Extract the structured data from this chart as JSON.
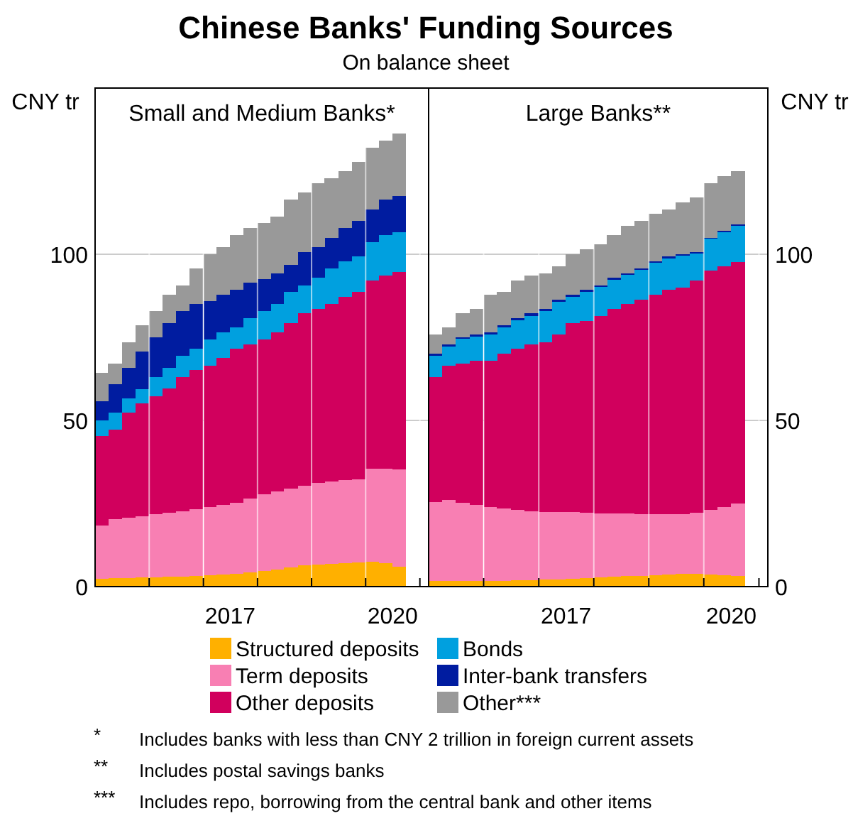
{
  "chart_data": [
    {
      "type": "bar",
      "title": "Small and Medium Banks*",
      "ylabel": "CNY tr",
      "stacked": true,
      "grid": true,
      "legend": "bottom",
      "x": [
        "2015-02-15",
        "2015-05-15",
        "2015-08-15",
        "2015-11-15",
        "2016-02-15",
        "2016-05-15",
        "2016-08-15",
        "2016-11-15",
        "2017-02-15",
        "2017-05-15",
        "2017-08-15",
        "2017-11-15",
        "2018-02-15",
        "2018-05-15",
        "2018-08-15",
        "2018-11-15",
        "2019-02-15",
        "2019-05-15",
        "2019-08-15",
        "2019-11-15",
        "2020-02-15",
        "2020-05-15",
        "2020-08-15"
      ],
      "xlim": [
        "2015-01",
        "2021-03"
      ],
      "xticks": [
        {
          "value": "2016-01",
          "label": null
        },
        {
          "value": "2017-01",
          "label": null
        },
        {
          "value": "2017-07",
          "label": "2017"
        },
        {
          "value": "2018-01",
          "label": null
        },
        {
          "value": "2019-01",
          "label": null
        },
        {
          "value": "2020-01",
          "label": null
        },
        {
          "value": "2020-07",
          "label": "2020"
        },
        {
          "value": "2021-01",
          "label": null
        }
      ],
      "ylim": [
        0,
        150
      ],
      "yticks": [
        0,
        50,
        100
      ],
      "series": [
        {
          "name": "Structured deposits",
          "color": "#ffb000",
          "values": [
            2.4,
            2.5,
            2.6,
            2.7,
            2.8,
            2.9,
            3.0,
            3.2,
            3.4,
            3.6,
            3.8,
            4.2,
            4.6,
            5.2,
            5.8,
            6.4,
            6.6,
            6.8,
            7.0,
            7.2,
            7.4,
            7.0,
            6.0
          ]
        },
        {
          "name": "Term deposits",
          "color": "#f87fb3",
          "values": [
            16.0,
            17.7,
            18.1,
            18.5,
            18.9,
            19.3,
            19.6,
            20.1,
            20.6,
            21.0,
            21.4,
            22.3,
            23.2,
            23.5,
            23.7,
            24.0,
            24.6,
            24.8,
            25.0,
            25.1,
            28.1,
            28.4,
            29.2
          ]
        },
        {
          "name": "Other deposits",
          "color": "#d1005d",
          "values": [
            27.0,
            27.1,
            31.6,
            33.9,
            35.6,
            37.5,
            40.4,
            41.8,
            42.5,
            44.1,
            46.3,
            46.4,
            46.6,
            47.8,
            49.8,
            51.8,
            52.4,
            53.4,
            55.2,
            56.3,
            56.7,
            58.2,
            59.5
          ]
        },
        {
          "name": "Bonds",
          "color": "#00a0df",
          "values": [
            4.7,
            5.0,
            4.3,
            4.3,
            5.7,
            6.1,
            6.4,
            6.4,
            7.9,
            7.8,
            6.4,
            7.9,
            8.5,
            8.5,
            9.3,
            8.5,
            9.3,
            10.7,
            10.7,
            10.7,
            11.4,
            12.1,
            12.0
          ]
        },
        {
          "name": "Inter-bank transfers",
          "color": "#001ca0",
          "values": [
            5.7,
            8.5,
            9.2,
            11.4,
            12.1,
            13.5,
            13.5,
            13.5,
            11.4,
            11.4,
            11.4,
            10.7,
            9.6,
            9.3,
            8.1,
            10.0,
            9.2,
            9.3,
            9.9,
            10.7,
            9.9,
            10.7,
            10.8
          ]
        },
        {
          "name": "Other***",
          "color": "#999999",
          "values": [
            8.6,
            6.4,
            7.8,
            7.8,
            7.8,
            8.6,
            7.8,
            10.7,
            14.2,
            14.2,
            16.4,
            16.3,
            16.8,
            17.1,
            19.7,
            17.8,
            19.3,
            17.8,
            17.1,
            17.8,
            18.5,
            17.8,
            18.8
          ]
        }
      ]
    },
    {
      "type": "bar",
      "title": "Large Banks**",
      "y2label": "CNY tr",
      "stacked": true,
      "grid": true,
      "x": [
        "2015-02-15",
        "2015-05-15",
        "2015-08-15",
        "2015-11-15",
        "2016-02-15",
        "2016-05-15",
        "2016-08-15",
        "2016-11-15",
        "2017-02-15",
        "2017-05-15",
        "2017-08-15",
        "2017-11-15",
        "2018-02-15",
        "2018-05-15",
        "2018-08-15",
        "2018-11-15",
        "2019-02-15",
        "2019-05-15",
        "2019-08-15",
        "2019-11-15",
        "2020-02-15",
        "2020-05-15",
        "2020-08-15"
      ],
      "xlim": [
        "2015-01",
        "2021-03"
      ],
      "xticks": [
        {
          "value": "2016-01",
          "label": null
        },
        {
          "value": "2017-01",
          "label": null
        },
        {
          "value": "2017-07",
          "label": "2017"
        },
        {
          "value": "2018-01",
          "label": null
        },
        {
          "value": "2019-01",
          "label": null
        },
        {
          "value": "2020-01",
          "label": null
        },
        {
          "value": "2020-07",
          "label": "2020"
        },
        {
          "value": "2021-01",
          "label": null
        }
      ],
      "y2lim": [
        0,
        150
      ],
      "y2ticks": [
        0,
        50,
        100
      ],
      "series": [
        {
          "axis": "y2",
          "color": "#ffb000",
          "values": [
            1.7,
            1.7,
            1.7,
            1.8,
            1.8,
            1.8,
            1.9,
            2.0,
            2.1,
            2.2,
            2.3,
            2.5,
            2.7,
            2.9,
            3.1,
            3.2,
            3.4,
            3.6,
            3.8,
            3.8,
            3.6,
            3.4,
            3.2
          ]
        },
        {
          "axis": "y2",
          "color": "#f87fb3",
          "values": [
            23.8,
            24.3,
            23.5,
            22.8,
            22.2,
            21.7,
            21.2,
            20.7,
            20.3,
            20.2,
            20.1,
            19.7,
            19.4,
            19.2,
            19.0,
            18.7,
            18.3,
            18.1,
            17.9,
            18.4,
            19.5,
            20.6,
            21.7
          ]
        },
        {
          "axis": "y2",
          "color": "#d1005d",
          "values": [
            37.5,
            40.5,
            42.0,
            43.3,
            43.9,
            46.6,
            48.4,
            50.2,
            51.2,
            53.4,
            56.9,
            57.8,
            59.4,
            61.5,
            62.9,
            64.5,
            66.2,
            67.6,
            68.3,
            70.0,
            71.9,
            72.4,
            72.7
          ]
        },
        {
          "axis": "y2",
          "color": "#00a0df",
          "values": [
            6.5,
            5.8,
            7.3,
            7.3,
            7.9,
            7.8,
            8.6,
            8.5,
            9.2,
            9.8,
            7.9,
            8.6,
            8.6,
            8.7,
            8.7,
            8.8,
            9.5,
            9.5,
            9.5,
            8.0,
            9.6,
            10.3,
            11.0
          ]
        },
        {
          "axis": "y2",
          "color": "#001ca0",
          "values": [
            0.6,
            0.6,
            0.6,
            0.6,
            0.7,
            0.7,
            0.7,
            0.8,
            0.8,
            0.8,
            0.7,
            0.7,
            0.6,
            0.6,
            0.6,
            0.5,
            0.5,
            0.5,
            0.5,
            0.5,
            0.4,
            0.4,
            0.4
          ]
        },
        {
          "axis": "y2",
          "color": "#999999",
          "values": [
            5.7,
            5.0,
            7.1,
            7.8,
            11.4,
            10.0,
            11.4,
            11.4,
            10.7,
            10.0,
            12.1,
            12.1,
            12.2,
            12.8,
            14.2,
            14.3,
            14.2,
            14.2,
            15.7,
            16.4,
            16.4,
            16.4,
            15.9
          ]
        }
      ]
    },
    {
      "type": "other",
      "title": "Chinese Banks' Funding Sources",
      "subtitle": "On balance sheet",
      "annotations": [
        "* Includes banks with less than CNY 2 trillion in foreign current assets",
        "** Includes postal savings banks",
        "*** Includes repo, borrowing from the central bank and other items"
      ]
    }
  ]
}
